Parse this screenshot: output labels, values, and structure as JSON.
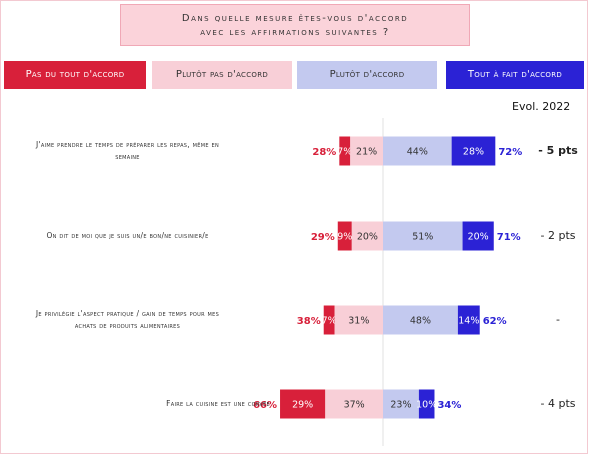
{
  "title": "Dans quelle mesure êtes-vous d'accord avec les affirmations suivantes ?",
  "title_line1": "Dans quelle mesure êtes-vous d'accord",
  "title_line2": "avec les affirmations suivantes ?",
  "colors": {
    "pas_du_tout": "#d8203a",
    "plutot_pas": "#f8cfd7",
    "plutot": "#c3c9ef",
    "tout_a_fait": "#2b22d5",
    "neg_total_text": "#d8203a",
    "pos_total_text": "#2b22d5"
  },
  "legend": [
    {
      "label": "Pas du tout d'accord",
      "color": "#d8203a",
      "text_color": "#ffffff"
    },
    {
      "label": "Plutôt pas d'accord",
      "color": "#f8cfd7",
      "text_color": "#333333"
    },
    {
      "label": "Plutôt d'accord",
      "color": "#c3c9ef",
      "text_color": "#333333"
    },
    {
      "label": "Tout à fait d'accord",
      "color": "#2b22d5",
      "text_color": "#ffffff"
    }
  ],
  "evol_header": "Evol. 2022",
  "chart_data": {
    "type": "bar",
    "orientation": "horizontal",
    "stacked": "diverging",
    "categories": [
      "J'aime prendre le temps de préparer les repas, même en semaine",
      "On dit de moi que je suis un/e bon/ne cuisinier/e",
      "Je privilégie l'aspect pratique / gain de temps pour mes achats de produits alimentaires",
      "Faire la cuisine est une corvée"
    ],
    "category_lines": [
      [
        "J'aime prendre le temps de préparer les repas, même en",
        "semaine"
      ],
      [
        "On dit de moi que je suis un/e bon/ne cuisinier/e"
      ],
      [
        "Je privilégie l'aspect pratique / gain de temps pour mes",
        "achats de produits alimentaires"
      ],
      [
        "Faire la cuisine est une corvée"
      ]
    ],
    "series": [
      {
        "name": "Pas du tout d'accord",
        "values": [
          7,
          9,
          7,
          29
        ]
      },
      {
        "name": "Plutôt pas d'accord",
        "values": [
          21,
          20,
          31,
          37
        ]
      },
      {
        "name": "Plutôt d'accord",
        "values": [
          44,
          51,
          48,
          23
        ]
      },
      {
        "name": "Tout à fait d'accord",
        "values": [
          28,
          20,
          14,
          10
        ]
      }
    ],
    "negative_totals": [
      28,
      29,
      38,
      66
    ],
    "positive_totals": [
      72,
      71,
      62,
      34
    ],
    "evolution_2022": [
      "- 5 pts",
      "- 2 pts",
      "-",
      "- 4 pts"
    ],
    "evolution_bold": [
      true,
      false,
      false,
      false
    ],
    "value_suffix": "%"
  }
}
